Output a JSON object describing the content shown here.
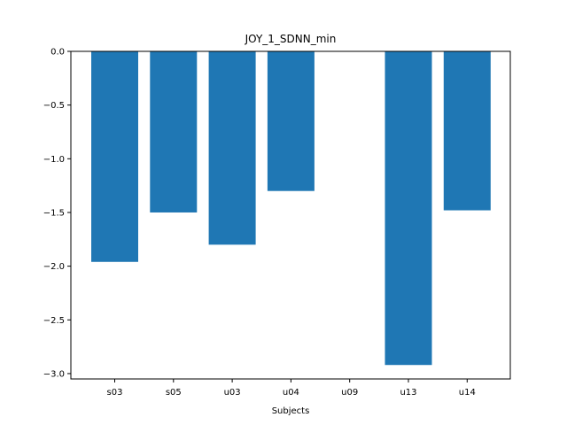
{
  "chart_data": {
    "type": "bar",
    "title": "JOY_1_SDNN_min",
    "xlabel": "Subjects",
    "ylabel": "",
    "categories": [
      "s03",
      "s05",
      "u03",
      "u04",
      "u09",
      "u13",
      "u14"
    ],
    "values": [
      -1.96,
      -1.5,
      -1.8,
      -1.3,
      0.0,
      -2.92,
      -1.48
    ],
    "ylim": [
      -3.05,
      0.0
    ],
    "yticks": [
      0.0,
      -0.5,
      -1.0,
      -1.5,
      -2.0,
      -2.5,
      -3.0
    ],
    "ytick_labels": [
      "0.0",
      "−0.5",
      "−1.0",
      "−1.5",
      "−2.0",
      "−2.5",
      "−3.0"
    ],
    "grid": false,
    "bar_color": "#1f77b4"
  }
}
